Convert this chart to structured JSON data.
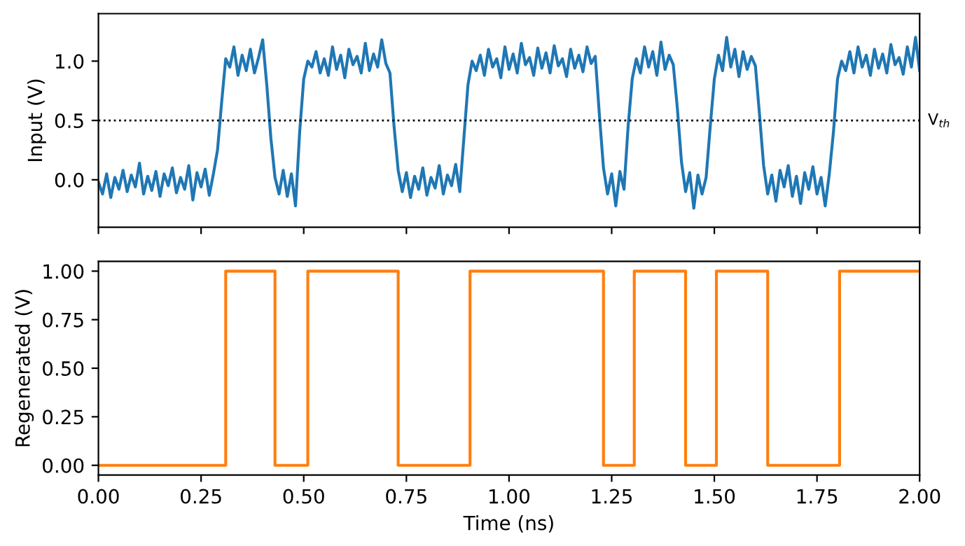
{
  "chart_data": [
    {
      "type": "line",
      "ylabel": "Input (V)",
      "tick_labels": "y",
      "xlim": [
        0,
        2
      ],
      "xticks": [
        0,
        0.25,
        0.5,
        0.75,
        1,
        1.25,
        1.5,
        1.75,
        2
      ],
      "ylim": [
        -0.4,
        1.4
      ],
      "yticks": [
        {
          "value": 0,
          "label": "0.0"
        },
        {
          "value": 0.5,
          "label": "0.5"
        },
        {
          "value": 1,
          "label": "1.0"
        }
      ],
      "ref_lines": [
        {
          "axis": "y",
          "value": 0.5,
          "label": "V$_{th}$",
          "color": "#000000",
          "line_style": "dotted"
        }
      ],
      "series": [
        {
          "color": "#1f77b4",
          "x": [
            0.0,
            0.01,
            0.02,
            0.03,
            0.04,
            0.05,
            0.06,
            0.07,
            0.08,
            0.09,
            0.1,
            0.11,
            0.12,
            0.13,
            0.14,
            0.15,
            0.16,
            0.17,
            0.18,
            0.19,
            0.2,
            0.21,
            0.22,
            0.23,
            0.24,
            0.25,
            0.26,
            0.27,
            0.28,
            0.29,
            0.3,
            0.31,
            0.32,
            0.33,
            0.34,
            0.35,
            0.36,
            0.37,
            0.38,
            0.39,
            0.4,
            0.41,
            0.42,
            0.43,
            0.44,
            0.45,
            0.46,
            0.47,
            0.48,
            0.49,
            0.5,
            0.51,
            0.52,
            0.53,
            0.54,
            0.55,
            0.56,
            0.57,
            0.58,
            0.59,
            0.6,
            0.61,
            0.62,
            0.63,
            0.64,
            0.65,
            0.66,
            0.67,
            0.68,
            0.69,
            0.7,
            0.71,
            0.72,
            0.73,
            0.74,
            0.75,
            0.76,
            0.77,
            0.78,
            0.79,
            0.8,
            0.81,
            0.82,
            0.83,
            0.84,
            0.85,
            0.86,
            0.87,
            0.88,
            0.89,
            0.9,
            0.91,
            0.92,
            0.93,
            0.94,
            0.95,
            0.96,
            0.97,
            0.98,
            0.99,
            1.0,
            1.01,
            1.02,
            1.03,
            1.04,
            1.05,
            1.06,
            1.07,
            1.08,
            1.09,
            1.1,
            1.11,
            1.12,
            1.13,
            1.14,
            1.15,
            1.16,
            1.17,
            1.18,
            1.19,
            1.2,
            1.21,
            1.22,
            1.23,
            1.24,
            1.25,
            1.26,
            1.27,
            1.28,
            1.29,
            1.3,
            1.31,
            1.32,
            1.33,
            1.34,
            1.35,
            1.36,
            1.37,
            1.38,
            1.39,
            1.4,
            1.41,
            1.42,
            1.43,
            1.44,
            1.45,
            1.46,
            1.47,
            1.48,
            1.49,
            1.5,
            1.51,
            1.52,
            1.53,
            1.54,
            1.55,
            1.56,
            1.57,
            1.58,
            1.59,
            1.6,
            1.61,
            1.62,
            1.63,
            1.64,
            1.65,
            1.66,
            1.67,
            1.68,
            1.69,
            1.7,
            1.71,
            1.72,
            1.73,
            1.74,
            1.75,
            1.76,
            1.77,
            1.78,
            1.79,
            1.8,
            1.81,
            1.82,
            1.83,
            1.84,
            1.85,
            1.86,
            1.87,
            1.88,
            1.89,
            1.9,
            1.91,
            1.92,
            1.93,
            1.94,
            1.95,
            1.96,
            1.97,
            1.98,
            1.99,
            2.0
          ],
          "values": [
            -0.02,
            -0.12,
            0.05,
            -0.15,
            0.02,
            -0.08,
            0.08,
            -0.1,
            0.04,
            -0.06,
            0.14,
            -0.12,
            0.03,
            -0.09,
            0.07,
            -0.14,
            0.05,
            -0.05,
            0.1,
            -0.11,
            0.02,
            -0.08,
            0.12,
            -0.17,
            0.06,
            -0.06,
            0.09,
            -0.13,
            0.05,
            0.25,
            0.65,
            1.02,
            0.95,
            1.12,
            0.88,
            1.05,
            0.92,
            1.1,
            0.9,
            1.03,
            1.18,
            0.8,
            0.35,
            0.02,
            -0.12,
            0.08,
            -0.14,
            0.05,
            -0.22,
            0.4,
            0.85,
            1.0,
            0.95,
            1.08,
            0.9,
            1.02,
            0.88,
            1.12,
            0.93,
            1.05,
            0.86,
            1.1,
            0.97,
            1.04,
            0.9,
            1.15,
            0.92,
            1.06,
            0.95,
            1.18,
            0.98,
            0.9,
            0.45,
            0.08,
            -0.1,
            0.06,
            -0.15,
            0.03,
            -0.08,
            0.1,
            -0.13,
            0.02,
            -0.07,
            0.12,
            -0.12,
            0.04,
            -0.05,
            0.13,
            -0.1,
            0.35,
            0.8,
            1.0,
            0.92,
            1.05,
            0.88,
            1.1,
            0.95,
            1.02,
            0.86,
            1.12,
            0.93,
            1.06,
            0.9,
            1.15,
            0.97,
            1.03,
            0.88,
            1.11,
            0.94,
            1.07,
            0.9,
            1.13,
            0.96,
            1.02,
            0.87,
            1.1,
            0.94,
            1.05,
            0.91,
            1.12,
            0.98,
            1.04,
            0.55,
            0.1,
            -0.12,
            0.05,
            -0.22,
            0.07,
            -0.08,
            0.45,
            0.85,
            1.02,
            0.9,
            1.12,
            0.95,
            1.08,
            0.88,
            1.16,
            0.93,
            1.05,
            0.97,
            0.6,
            0.15,
            -0.1,
            0.06,
            -0.24,
            0.04,
            -0.12,
            0.02,
            0.45,
            0.85,
            1.05,
            0.92,
            1.2,
            0.95,
            1.1,
            0.87,
            1.08,
            0.93,
            1.04,
            0.96,
            0.55,
            0.12,
            -0.12,
            0.04,
            -0.18,
            0.08,
            -0.06,
            0.12,
            -0.14,
            0.03,
            -0.2,
            0.06,
            -0.08,
            0.11,
            -0.12,
            0.02,
            -0.22,
            0.05,
            0.4,
            0.85,
            1.0,
            0.92,
            1.08,
            0.9,
            1.12,
            0.95,
            1.05,
            0.88,
            1.1,
            0.94,
            1.06,
            0.9,
            1.14,
            0.97,
            1.03,
            0.89,
            1.12,
            0.95,
            1.2,
            0.92
          ]
        }
      ]
    },
    {
      "type": "step",
      "xlabel": "Time (ns)",
      "ylabel": "Regenerated (V)",
      "xlim": [
        0,
        2
      ],
      "xticks": [
        {
          "value": 0,
          "label": "0.00"
        },
        {
          "value": 0.25,
          "label": "0.25"
        },
        {
          "value": 0.5,
          "label": "0.50"
        },
        {
          "value": 0.75,
          "label": "0.75"
        },
        {
          "value": 1,
          "label": "1.00"
        },
        {
          "value": 1.25,
          "label": "1.25"
        },
        {
          "value": 1.5,
          "label": "1.50"
        },
        {
          "value": 1.75,
          "label": "1.75"
        },
        {
          "value": 2,
          "label": "2.00"
        }
      ],
      "ylim": [
        -0.05,
        1.05
      ],
      "yticks": [
        {
          "value": 0,
          "label": "0.00"
        },
        {
          "value": 0.25,
          "label": "0.25"
        },
        {
          "value": 0.5,
          "label": "0.50"
        },
        {
          "value": 0.75,
          "label": "0.75"
        },
        {
          "value": 1,
          "label": "1.00"
        }
      ],
      "series": [
        {
          "color": "#ff7f0e",
          "x": [
            0,
            0.31,
            0.43,
            0.51,
            0.73,
            0.905,
            1.23,
            1.305,
            1.43,
            1.505,
            1.63,
            1.805,
            2.0
          ],
          "values": [
            0,
            1,
            0,
            1,
            0,
            1,
            0,
            1,
            0,
            1,
            0,
            1,
            1
          ]
        }
      ]
    }
  ]
}
